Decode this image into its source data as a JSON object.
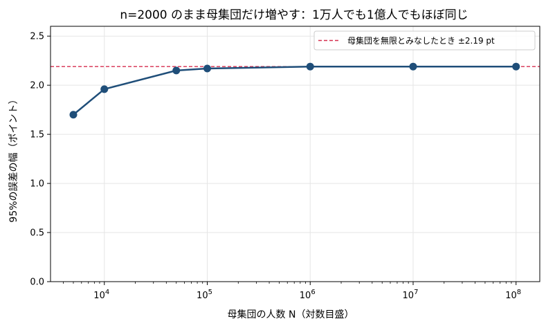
{
  "chart_data": {
    "type": "line",
    "title": "n=2000 のまま母集団だけ増やす：1万人でも1億人でもほぼ同じ",
    "xlabel": "母集団の人数 N（対数目盛）",
    "ylabel": "95%の誤差の幅（ポイント）",
    "x_scale": "log",
    "xlim": [
      3000,
      170000000
    ],
    "ylim": [
      0,
      2.6
    ],
    "x_ticks": [
      10000,
      100000,
      1000000,
      10000000,
      100000000
    ],
    "x_tick_labels": [
      {
        "base": "10",
        "exp": "4"
      },
      {
        "base": "10",
        "exp": "5"
      },
      {
        "base": "10",
        "exp": "6"
      },
      {
        "base": "10",
        "exp": "7"
      },
      {
        "base": "10",
        "exp": "8"
      }
    ],
    "y_ticks": [
      0,
      0.5,
      1.0,
      1.5,
      2.0,
      2.5
    ],
    "y_tick_labels": [
      "0.0",
      "0.5",
      "1.0",
      "1.5",
      "2.0",
      "2.5"
    ],
    "grid": true,
    "legend_position": "top-right",
    "series": [
      {
        "x": [
          5000,
          10000,
          50000,
          100000,
          1000000,
          10000000,
          100000000
        ],
        "values": [
          1.7,
          1.96,
          2.15,
          2.17,
          2.19,
          2.19,
          2.19
        ],
        "color": "#1f4e79"
      }
    ],
    "reference_line": {
      "y": 2.19,
      "label": "母集団を無限とみなしたとき ±2.19 pt",
      "color": "#d62d4d",
      "style": "dashed"
    }
  }
}
